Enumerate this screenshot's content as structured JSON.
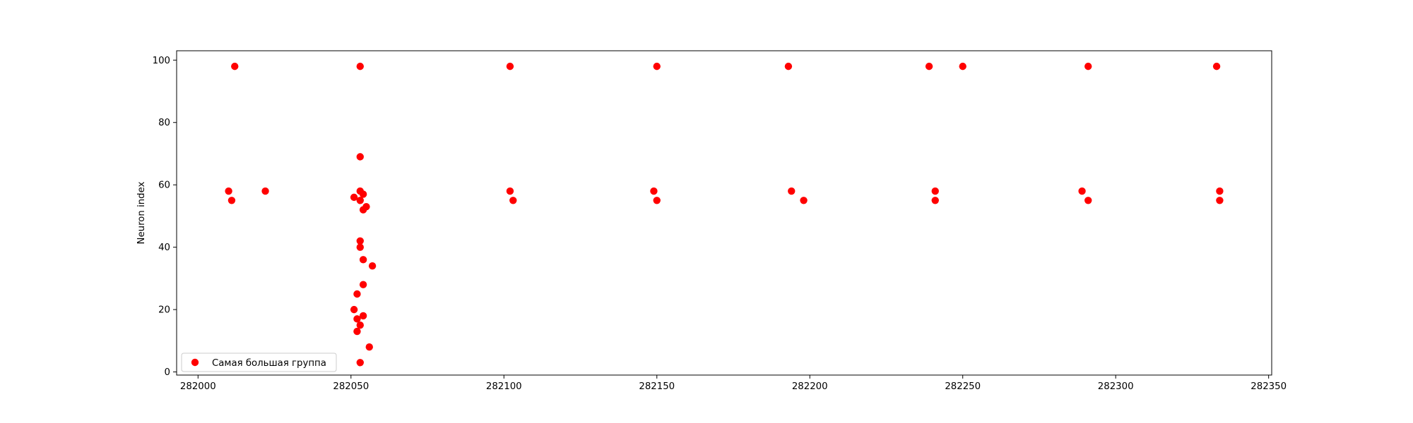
{
  "chart_data": {
    "type": "scatter",
    "title": "",
    "xlabel": "",
    "ylabel": "Neuron index",
    "xlim": [
      281993,
      282351
    ],
    "ylim": [
      -1,
      103
    ],
    "xticks": [
      282000,
      282050,
      282100,
      282150,
      282200,
      282250,
      282300,
      282350
    ],
    "yticks": [
      0,
      20,
      40,
      60,
      80,
      100
    ],
    "grid": false,
    "legend_position": "lower-left",
    "series": [
      {
        "name": "Самая большая группа",
        "color": "#ff0000",
        "marker": "circle",
        "points": [
          [
            282010,
            58
          ],
          [
            282011,
            55
          ],
          [
            282012,
            98
          ],
          [
            282022,
            58
          ],
          [
            282051,
            56
          ],
          [
            282051,
            20
          ],
          [
            282052,
            25
          ],
          [
            282052,
            17
          ],
          [
            282052,
            13
          ],
          [
            282053,
            69
          ],
          [
            282053,
            58
          ],
          [
            282053,
            55
          ],
          [
            282053,
            40
          ],
          [
            282053,
            98
          ],
          [
            282053,
            42
          ],
          [
            282053,
            15
          ],
          [
            282053,
            3
          ],
          [
            282054,
            57
          ],
          [
            282054,
            52
          ],
          [
            282054,
            36
          ],
          [
            282054,
            28
          ],
          [
            282054,
            18
          ],
          [
            282055,
            53
          ],
          [
            282056,
            8
          ],
          [
            282057,
            34
          ],
          [
            282102,
            98
          ],
          [
            282102,
            58
          ],
          [
            282103,
            55
          ],
          [
            282149,
            58
          ],
          [
            282150,
            55
          ],
          [
            282150,
            98
          ],
          [
            282193,
            98
          ],
          [
            282194,
            58
          ],
          [
            282198,
            55
          ],
          [
            282239,
            98
          ],
          [
            282241,
            58
          ],
          [
            282241,
            55
          ],
          [
            282250,
            98
          ],
          [
            282289,
            58
          ],
          [
            282291,
            55
          ],
          [
            282291,
            98
          ],
          [
            282333,
            98
          ],
          [
            282334,
            58
          ],
          [
            282334,
            55
          ]
        ]
      }
    ]
  }
}
